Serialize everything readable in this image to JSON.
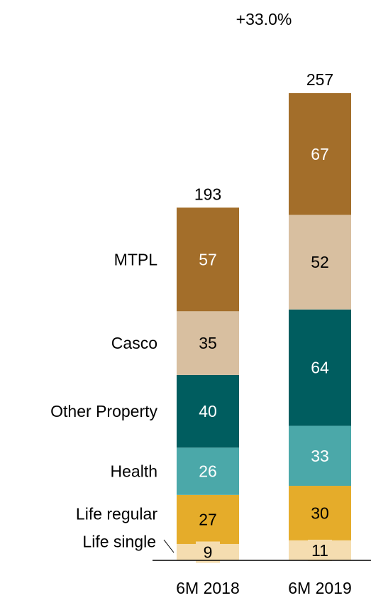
{
  "chart_data": {
    "type": "bar",
    "stacked": true,
    "categories": [
      "6M 2018",
      "6M 2019"
    ],
    "series": [
      {
        "name": "Life single",
        "values": [
          9,
          11
        ],
        "color": "#F5DDB0",
        "label_color": "#000000"
      },
      {
        "name": "Life regular",
        "values": [
          27,
          30
        ],
        "color": "#E5AC2A",
        "label_color": "#000000"
      },
      {
        "name": "Health",
        "values": [
          26,
          33
        ],
        "color": "#4BA8A9",
        "label_color": "#ffffff"
      },
      {
        "name": "Other Property",
        "values": [
          40,
          64
        ],
        "color": "#005D5F",
        "label_color": "#ffffff"
      },
      {
        "name": "Casco",
        "values": [
          35,
          52
        ],
        "color": "#D8BFA0",
        "label_color": "#000000"
      },
      {
        "name": "MTPL",
        "values": [
          57,
          67
        ],
        "color": "#A36E2A",
        "label_color": "#ffffff"
      }
    ],
    "totals": [
      "193",
      "257"
    ],
    "growth_label": "+33.0%",
    "title": "",
    "xlabel": "",
    "ylabel": "",
    "legend_placement": "left, aligned with first bar segments"
  }
}
